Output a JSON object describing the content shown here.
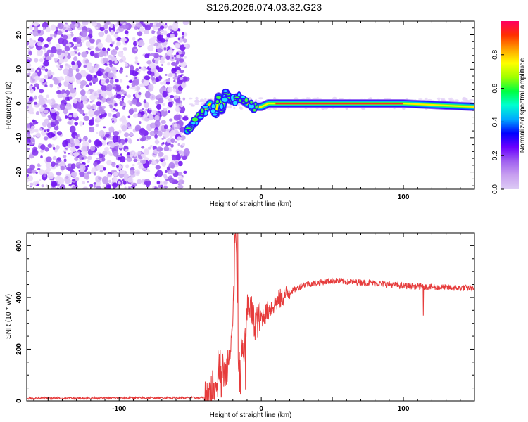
{
  "title": "S126.2026.074.03.32.G23",
  "chart_data": [
    {
      "type": "heatmap",
      "xlabel": "Height of straight line (km)",
      "ylabel": "Frequency (Hz)",
      "xlim": [
        -165,
        150
      ],
      "ylim": [
        -25,
        24
      ],
      "xticks": [
        -100,
        0,
        100
      ],
      "yticks": [
        -20,
        -10,
        0,
        10,
        20
      ],
      "noise_region_x": [
        -165,
        -52
      ],
      "signal_track": [
        {
          "x": -52,
          "y": -8
        },
        {
          "x": -48,
          "y": -6
        },
        {
          "x": -44,
          "y": -4
        },
        {
          "x": -40,
          "y": -2
        },
        {
          "x": -36,
          "y": 0
        },
        {
          "x": -32,
          "y": -3
        },
        {
          "x": -30,
          "y": 2
        },
        {
          "x": -28,
          "y": -2
        },
        {
          "x": -25,
          "y": 3
        },
        {
          "x": -22,
          "y": 1
        },
        {
          "x": -18,
          "y": 1
        },
        {
          "x": -15,
          "y": 1.5
        },
        {
          "x": -10,
          "y": 0
        },
        {
          "x": -5,
          "y": -1
        },
        {
          "x": 0,
          "y": -1
        },
        {
          "x": 5,
          "y": 0
        },
        {
          "x": 10,
          "y": 0
        },
        {
          "x": 50,
          "y": 0
        },
        {
          "x": 100,
          "y": 0
        },
        {
          "x": 150,
          "y": -1
        }
      ],
      "colorbar": {
        "label": "Normalized spectral amplitude",
        "ticks": [
          "0.0",
          "0.2",
          "0.4",
          "0.6",
          "0.8"
        ],
        "range": [
          0,
          1
        ],
        "colors": [
          "#dccbf5",
          "#c8a0f0",
          "#a060f0",
          "#6a00ff",
          "#0000ff",
          "#00aaff",
          "#00ffd0",
          "#00ff40",
          "#a0ff00",
          "#ffff00",
          "#ffa000",
          "#ff3000",
          "#ff0060"
        ]
      }
    },
    {
      "type": "line",
      "xlabel": "Height of straight line (km)",
      "ylabel": "SNR (10 * v/v)",
      "xlim": [
        -165,
        150
      ],
      "ylim": [
        0,
        650
      ],
      "xticks": [
        -100,
        0,
        100
      ],
      "yticks": [
        0,
        200,
        400,
        600
      ],
      "color": "#e63c3c",
      "series_key_points": [
        {
          "x": -165,
          "y": 10
        },
        {
          "x": -40,
          "y": 12
        },
        {
          "x": -33,
          "y": 60
        },
        {
          "x": -30,
          "y": 150
        },
        {
          "x": -25,
          "y": 100
        },
        {
          "x": -20,
          "y": 300
        },
        {
          "x": -18,
          "y": 650
        },
        {
          "x": -16,
          "y": 150
        },
        {
          "x": -12,
          "y": 200
        },
        {
          "x": -9,
          "y": 390
        },
        {
          "x": -5,
          "y": 300
        },
        {
          "x": 0,
          "y": 320
        },
        {
          "x": 5,
          "y": 350
        },
        {
          "x": 10,
          "y": 380
        },
        {
          "x": 20,
          "y": 420
        },
        {
          "x": 30,
          "y": 450
        },
        {
          "x": 50,
          "y": 465
        },
        {
          "x": 80,
          "y": 455
        },
        {
          "x": 100,
          "y": 445
        },
        {
          "x": 120,
          "y": 440
        },
        {
          "x": 150,
          "y": 435
        }
      ]
    }
  ]
}
